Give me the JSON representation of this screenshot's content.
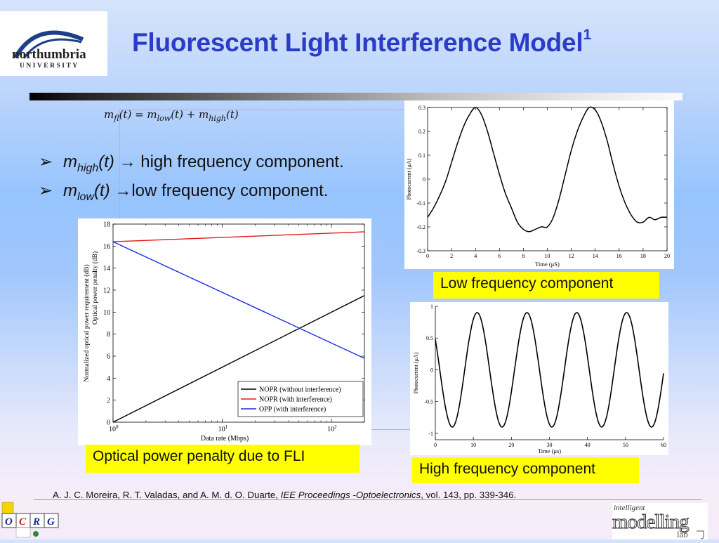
{
  "header": {
    "logo": {
      "name": "northumbria",
      "sub": "UNIVERSITY"
    },
    "title": "Fluorescent Light Interference Model",
    "title_sup": "1"
  },
  "formula": {
    "lhs": "m",
    "lhs_sub": "fl",
    "t1": "(t) = m",
    "sub_low": "low",
    "t2": "(t) + m",
    "sub_high": "high",
    "t3": "(t)"
  },
  "bullets": [
    {
      "marker": "➢",
      "m": "m",
      "sub": "high",
      "arg": "(t)",
      "arrow": "→",
      "text": " high frequency component."
    },
    {
      "marker": "➢",
      "m": "m",
      "sub": "low",
      "arg": "(t)",
      "arrow": "→",
      "text": "low frequency  component."
    }
  ],
  "captions": {
    "penalty": "Optical power penalty due to FLI",
    "low": "Low frequency component",
    "high": "High frequency component"
  },
  "reference": {
    "authors": "A. J. C. Moreira, R. T. Valadas, and A. M. d. O. Duarte, ",
    "journal": "IEE Proceedings -Optoelectronics",
    "tail": ", vol. 143, pp. 339-346."
  },
  "footer": {
    "ocrg_letters": [
      "O",
      "C",
      "R",
      "G"
    ],
    "lab_logo": {
      "line1": "intelligent",
      "line2": "modelling",
      "line3": "lab"
    }
  },
  "colors": {
    "title": "#2b3cc5",
    "caption_bg": "#ffff00",
    "nopr_no_int": "#000000",
    "nopr_int": "#e41a1a",
    "opp": "#1a2ae4"
  },
  "chart_data": [
    {
      "type": "line",
      "xlabel": "Data rate  (Mbps)",
      "ylabel": [
        "Normalized optical power requirement (dB)",
        "Optical power penalty (dB)"
      ],
      "xscale": "log",
      "xlim": [
        1,
        200
      ],
      "ylim": [
        0,
        18
      ],
      "xticks": [
        {
          "v": 1,
          "base": "10",
          "exp": "0"
        },
        {
          "v": 10,
          "base": "10",
          "exp": "1"
        },
        {
          "v": 100,
          "base": "10",
          "exp": "2"
        }
      ],
      "yticks": [
        0,
        2,
        4,
        6,
        8,
        10,
        12,
        14,
        16,
        18
      ],
      "legend_position": "bottom-right",
      "series": [
        {
          "name": "NOPR (without interference)",
          "color": "#000000",
          "x": [
            1,
            200
          ],
          "y": [
            0,
            11.5
          ]
        },
        {
          "name": "NOPR (with interference)",
          "color": "#e41a1a",
          "x": [
            1,
            200
          ],
          "y": [
            16.4,
            17.3
          ]
        },
        {
          "name": "OPP (with interference)",
          "color": "#1a2ae4",
          "x": [
            1,
            200
          ],
          "y": [
            16.4,
            5.8
          ]
        }
      ]
    },
    {
      "type": "line",
      "xlabel": "Time (μS)",
      "ylabel": "Photocurrent (μA)",
      "xlim": [
        0,
        20
      ],
      "ylim": [
        -0.3,
        0.3
      ],
      "xticks": [
        0,
        2,
        4,
        6,
        8,
        10,
        12,
        14,
        16,
        18,
        20
      ],
      "yticks": [
        0.3,
        0.2,
        0.1,
        0,
        -0.1,
        -0.2,
        -0.3
      ],
      "series": [
        {
          "x": [
            0,
            0.5,
            1,
            1.5,
            2,
            2.5,
            3,
            3.5,
            4,
            4.5,
            5,
            5.5,
            6,
            6.5,
            7,
            7.5,
            8,
            8.5,
            9,
            9.5,
            10,
            10.5,
            11,
            11.5,
            12,
            12.5,
            13,
            13.5,
            14,
            14.5,
            15,
            15.5,
            16,
            16.5,
            17,
            17.5,
            18,
            18.5,
            19,
            19.5,
            20
          ],
          "y": [
            -0.16,
            -0.12,
            -0.07,
            -0.01,
            0.07,
            0.15,
            0.22,
            0.27,
            0.3,
            0.27,
            0.2,
            0.11,
            0.02,
            -0.06,
            -0.12,
            -0.18,
            -0.21,
            -0.22,
            -0.21,
            -0.2,
            -0.2,
            -0.16,
            -0.08,
            0.02,
            0.12,
            0.2,
            0.26,
            0.3,
            0.29,
            0.24,
            0.16,
            0.06,
            -0.03,
            -0.1,
            -0.15,
            -0.18,
            -0.18,
            -0.16,
            -0.17,
            -0.16,
            -0.16
          ]
        }
      ]
    },
    {
      "type": "line",
      "xlabel": "Time (μs)",
      "ylabel": "Photocurrent (μA)",
      "xlim": [
        0,
        60
      ],
      "ylim": [
        -1.1,
        1
      ],
      "xticks": [
        0,
        10,
        20,
        30,
        40,
        50,
        60
      ],
      "yticks": [
        1,
        0.5,
        0,
        -0.5,
        -1
      ],
      "series": [
        {
          "amplitude": 0.9,
          "period": 13.1,
          "peak_at": 11,
          "x_start": 0,
          "x_end": 60
        }
      ]
    }
  ]
}
